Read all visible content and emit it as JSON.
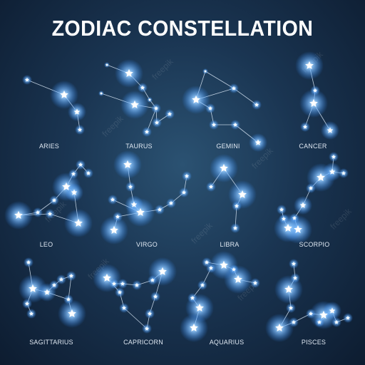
{
  "title": "ZODIAC CONSTELLATION",
  "watermark": "freepik",
  "colors": {
    "background": "#1a3552",
    "star_glow": "#4aa8ff",
    "star_core": "#ffffff",
    "line": "#d8e6f5"
  },
  "constellations": [
    {
      "name": "ARIES"
    },
    {
      "name": "TAURUS"
    },
    {
      "name": "GEMINI"
    },
    {
      "name": "CANCER"
    },
    {
      "name": "LEO"
    },
    {
      "name": "VIRGO"
    },
    {
      "name": "LIBRA"
    },
    {
      "name": "SCORPIO"
    },
    {
      "name": "SAGITTARIUS"
    },
    {
      "name": "CAPRICORN"
    },
    {
      "name": "AQUARIUS"
    },
    {
      "name": "PISCES"
    }
  ]
}
